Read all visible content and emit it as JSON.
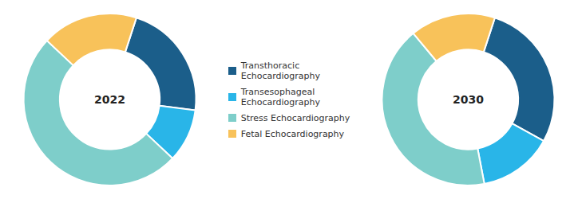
{
  "chart_data": [
    {
      "type": "pie",
      "title": "2022",
      "categories": [
        "Transthoracic\nEchocardiography",
        "Transesophageal\nEchocardiography",
        "Stress Echocardiography",
        "Fetal Echocardiography"
      ],
      "values": [
        22,
        10,
        50,
        18
      ],
      "colors": [
        "#1b5e8a",
        "#29b5e8",
        "#7ececa",
        "#f8c25a"
      ],
      "legend": "right"
    },
    {
      "type": "pie",
      "title": "2030",
      "categories": [
        "Transthoracic\nEchocardiography",
        "Transesophageal\nEchocardiography",
        "Stress Echocardiography",
        "Fetal Echocardiography"
      ],
      "values": [
        28,
        14,
        42,
        16
      ],
      "colors": [
        "#1b5e8a",
        "#29b5e8",
        "#7ececa",
        "#f8c25a"
      ]
    }
  ]
}
